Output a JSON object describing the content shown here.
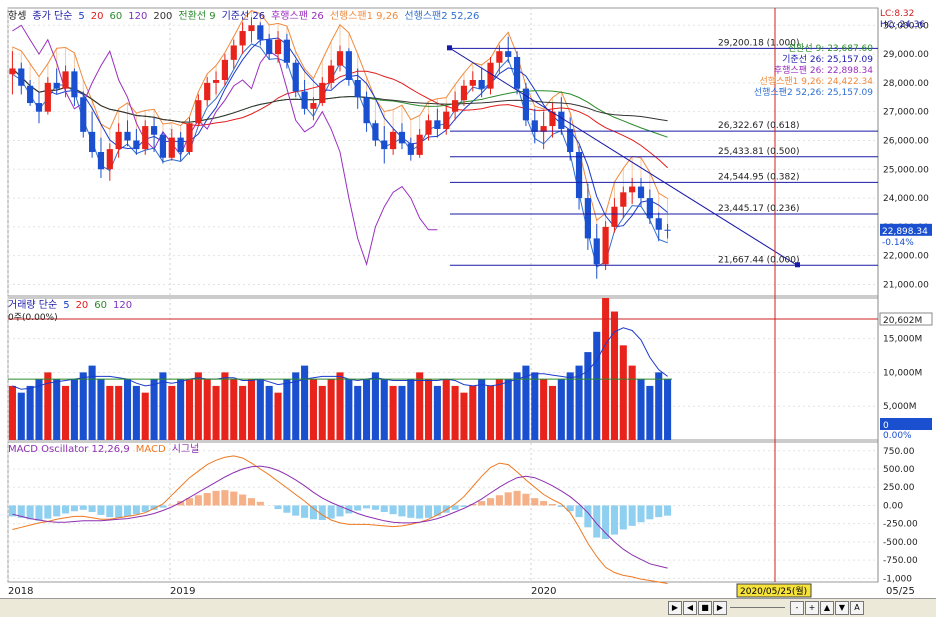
{
  "colors": {
    "up": "#e8231c",
    "down": "#1a4fcf",
    "ma5": "#1b3bcc",
    "ma20": "#e21b1b",
    "ma60": "#2b8a2b",
    "ma120": "#7e2fbf",
    "ma200": "#333333",
    "tenkan": "#2b8a2b",
    "kijun": "#1a1aa8",
    "chikou": "#9a2fc0",
    "spanA": "#f08a3c",
    "spanB": "#2f6fd0",
    "macd": "#f07820",
    "signal": "#8e2fb0",
    "hist_pos": "#f6b088",
    "hist_neg": "#8fd0f0",
    "vline": "#cc2020",
    "fib": "#1a1aa8"
  },
  "price_panel": {
    "legend": [
      {
        "text": "항셍",
        "color": "#222"
      },
      {
        "text": "종가 단순",
        "color": "#1a1aa8"
      },
      {
        "text": "5",
        "color": "#1b3bcc"
      },
      {
        "text": "20",
        "color": "#e21b1b"
      },
      {
        "text": "60",
        "color": "#2b8a2b"
      },
      {
        "text": "120",
        "color": "#7e2fbf"
      },
      {
        "text": "200",
        "color": "#333"
      },
      {
        "text": "전환선 9",
        "color": "#2b8a2b"
      },
      {
        "text": "기준선 26",
        "color": "#1a1aa8"
      },
      {
        "text": "후행스팬 26",
        "color": "#9a2fc0"
      },
      {
        "text": "선행스팬1 9,26",
        "color": "#f08a3c"
      },
      {
        "text": "선행스팬2 52,26",
        "color": "#2f6fd0"
      }
    ],
    "corner_lc": "LC:8.32",
    "corner_hc": "HC:-24.36",
    "ichimoku_readout": [
      {
        "text": "전환선 9: 23,687.60",
        "color": "#2b8a2b"
      },
      {
        "text": "기준선 26: 25,157.09",
        "color": "#1a1aa8"
      },
      {
        "text": "후행스팬 26: 22,898.34",
        "color": "#9a2fc0"
      },
      {
        "text": "선행스팬1 9,26: 24,422.34",
        "color": "#f08a3c"
      },
      {
        "text": "선행스팬2 52,26: 25,157.09",
        "color": "#2f6fd0"
      }
    ],
    "y_axis": [
      "30,000.00",
      "29,000.00",
      "28,000.00",
      "27,000.00",
      "26,000.00",
      "25,000.00",
      "24,000.00",
      "23,000.00",
      "22,000.00",
      "21,000.00"
    ],
    "current_price": "22,898.34",
    "current_change": "-0.14%",
    "fib_levels": [
      {
        "label": "29,200.18 (1.000)",
        "value": 29200.18
      },
      {
        "label": "26,322.67 (0.618)",
        "value": 26322.67
      },
      {
        "label": "25,433.81 (0.500)",
        "value": 25433.81
      },
      {
        "label": "24,544.95 (0.382)",
        "value": 24544.95
      },
      {
        "label": "23,445.17 (0.236)",
        "value": 23445.17
      },
      {
        "label": "21,667.44 (0.000)",
        "value": 21667.44
      }
    ]
  },
  "volume_panel": {
    "legend": [
      {
        "text": "거래량 단순",
        "color": "#1a1aa8"
      },
      {
        "text": "5",
        "color": "#1b3bcc"
      },
      {
        "text": "20",
        "color": "#e21b1b"
      },
      {
        "text": "60",
        "color": "#2b8a2b"
      },
      {
        "text": "120",
        "color": "#7e2fbf"
      }
    ],
    "sub_legend": "0주(0.00%)",
    "y_axis": [
      "15,000M",
      "10,000M",
      "5,000M"
    ],
    "current_volume": "20,602M",
    "current_zero": "0",
    "current_pct": "0.00%"
  },
  "macd_panel": {
    "legend": [
      {
        "text": "MACD Oscillator 12,26,9",
        "color": "#8e2fb0"
      },
      {
        "text": "MACD",
        "color": "#f07820"
      },
      {
        "text": "시그널",
        "color": "#8e2fb0"
      }
    ],
    "y_axis": [
      "750.00",
      "500.00",
      "250.00",
      "0.00",
      "-250.00",
      "-500.00",
      "-750.00",
      "-1,000"
    ]
  },
  "x_axis": {
    "labels": [
      "2018",
      "2019",
      "2020"
    ],
    "right_label": "05/25",
    "cursor_date": "2020/05/25(월)"
  },
  "chart_data": {
    "type": "candlestick",
    "title": "항셍",
    "price_ylim": [
      20600,
      30600
    ],
    "fib_anchor_high": 29200.18,
    "fib_anchor_low": 21667.44,
    "last_close": 22898.34,
    "last_change_pct": -0.14,
    "ichimoku": {
      "tenkan_9": 23687.6,
      "kijun_26": 25157.09,
      "chikou_26": 22898.34,
      "span1_9_26": 24422.34,
      "span2_52_26": 25157.09
    },
    "candles": [
      [
        28300,
        29100,
        27600,
        28500
      ],
      [
        28500,
        28700,
        27600,
        27900
      ],
      [
        27900,
        28100,
        27200,
        27300
      ],
      [
        27300,
        27700,
        26600,
        27000
      ],
      [
        27000,
        28200,
        26900,
        28000
      ],
      [
        28000,
        28500,
        27600,
        27800
      ],
      [
        27800,
        28600,
        27500,
        28400
      ],
      [
        28400,
        28500,
        27200,
        27500
      ],
      [
        27500,
        27700,
        26100,
        26300
      ],
      [
        26300,
        27000,
        25400,
        25600
      ],
      [
        25600,
        26100,
        24700,
        25000
      ],
      [
        25000,
        25900,
        24600,
        25700
      ],
      [
        25700,
        26600,
        25400,
        26300
      ],
      [
        26300,
        26700,
        25800,
        26000
      ],
      [
        26000,
        26400,
        25500,
        25700
      ],
      [
        25700,
        26700,
        25500,
        26500
      ],
      [
        26500,
        26800,
        25600,
        26200
      ],
      [
        26200,
        26300,
        25200,
        25400
      ],
      [
        25400,
        26400,
        25300,
        26100
      ],
      [
        26100,
        26300,
        25300,
        25600
      ],
      [
        25600,
        26800,
        25500,
        26600
      ],
      [
        26600,
        27600,
        26500,
        27400
      ],
      [
        27400,
        28200,
        27200,
        28000
      ],
      [
        28000,
        28400,
        27600,
        28100
      ],
      [
        28100,
        29000,
        27900,
        28800
      ],
      [
        28800,
        29500,
        28500,
        29300
      ],
      [
        29300,
        30100,
        29000,
        29800
      ],
      [
        29800,
        30280,
        29400,
        30000
      ],
      [
        30000,
        30100,
        29300,
        29500
      ],
      [
        29500,
        29700,
        28800,
        29000
      ],
      [
        29000,
        29800,
        28700,
        29500
      ],
      [
        29500,
        29700,
        28500,
        28700
      ],
      [
        28700,
        28800,
        27500,
        27700
      ],
      [
        27700,
        28100,
        26900,
        27100
      ],
      [
        27100,
        27500,
        26700,
        27300
      ],
      [
        27300,
        28200,
        27200,
        28000
      ],
      [
        28000,
        28800,
        27800,
        28600
      ],
      [
        28600,
        29300,
        28400,
        29100
      ],
      [
        29100,
        29200,
        27900,
        28100
      ],
      [
        28100,
        28500,
        27100,
        27500
      ],
      [
        27500,
        27700,
        26300,
        26600
      ],
      [
        26600,
        26700,
        25800,
        26000
      ],
      [
        26000,
        26500,
        25200,
        25700
      ],
      [
        25700,
        26400,
        25500,
        26300
      ],
      [
        26300,
        26600,
        25700,
        25900
      ],
      [
        25900,
        26100,
        25300,
        25500
      ],
      [
        25500,
        26400,
        25400,
        26200
      ],
      [
        26200,
        26900,
        26000,
        26700
      ],
      [
        26700,
        27100,
        26100,
        26400
      ],
      [
        26400,
        27200,
        26200,
        27000
      ],
      [
        27000,
        27700,
        26700,
        27400
      ],
      [
        27400,
        28100,
        27200,
        27900
      ],
      [
        27900,
        28400,
        27700,
        28100
      ],
      [
        28100,
        28500,
        27500,
        27800
      ],
      [
        27800,
        28900,
        27600,
        28700
      ],
      [
        28700,
        29300,
        28300,
        29100
      ],
      [
        29100,
        29600,
        28700,
        28900
      ],
      [
        28900,
        29100,
        27600,
        27800
      ],
      [
        27800,
        28000,
        26500,
        26700
      ],
      [
        26700,
        27100,
        25900,
        26300
      ],
      [
        26300,
        27000,
        25700,
        26500
      ],
      [
        26500,
        27300,
        26100,
        27000
      ],
      [
        27000,
        27500,
        26200,
        26400
      ],
      [
        26400,
        26800,
        25300,
        25600
      ],
      [
        25600,
        25800,
        23600,
        24000
      ],
      [
        24000,
        24500,
        22200,
        22600
      ],
      [
        22600,
        23100,
        21200,
        21700
      ],
      [
        21700,
        23200,
        21500,
        23000
      ],
      [
        23000,
        24000,
        22800,
        23700
      ],
      [
        23700,
        24400,
        23300,
        24200
      ],
      [
        24200,
        24700,
        23800,
        24400
      ],
      [
        24400,
        24700,
        23700,
        24000
      ],
      [
        24000,
        24300,
        23100,
        23300
      ],
      [
        23300,
        23500,
        22500,
        22900
      ],
      [
        22900,
        23100,
        22600,
        22898
      ]
    ],
    "volume": [
      8,
      7,
      8,
      9,
      10,
      9,
      8,
      9,
      10,
      11,
      9,
      8,
      8,
      9,
      8,
      7,
      9,
      10,
      8,
      9,
      9,
      10,
      9,
      8,
      10,
      9,
      8,
      9,
      9,
      8,
      7,
      9,
      10,
      11,
      9,
      8,
      9,
      10,
      9,
      8,
      9,
      10,
      9,
      8,
      8,
      9,
      10,
      9,
      8,
      9,
      8,
      7,
      8,
      9,
      8,
      9,
      9,
      10,
      11,
      10,
      9,
      8,
      9,
      10,
      11,
      13,
      16,
      21,
      19,
      14,
      11,
      9,
      8,
      10,
      9
    ],
    "macd_hist": [
      -150,
      -170,
      -190,
      -210,
      -180,
      -150,
      -110,
      -80,
      -60,
      -90,
      -130,
      -160,
      -170,
      -150,
      -120,
      -90,
      -60,
      -30,
      10,
      60,
      100,
      140,
      170,
      200,
      210,
      190,
      150,
      100,
      50,
      0,
      -50,
      -100,
      -140,
      -170,
      -190,
      -200,
      -180,
      -150,
      -110,
      -70,
      -40,
      -60,
      -90,
      -120,
      -150,
      -170,
      -180,
      -170,
      -140,
      -100,
      -60,
      -20,
      20,
      60,
      100,
      140,
      180,
      200,
      160,
      100,
      60,
      20,
      -20,
      -80,
      -160,
      -300,
      -440,
      -460,
      -400,
      -330,
      -280,
      -230,
      -190,
      -160,
      -140
    ],
    "macd_line": [
      -330,
      -300,
      -270,
      -240,
      -220,
      -190,
      -170,
      -150,
      -150,
      -170,
      -190,
      -190,
      -170,
      -150,
      -130,
      -100,
      -40,
      20,
      140,
      260,
      380,
      470,
      560,
      620,
      660,
      680,
      650,
      580,
      500,
      420,
      330,
      240,
      150,
      60,
      -40,
      -130,
      -200,
      -240,
      -260,
      -260,
      -260,
      -270,
      -280,
      -290,
      -280,
      -260,
      -230,
      -190,
      -130,
      -60,
      20,
      120,
      260,
      400,
      520,
      580,
      560,
      460,
      350,
      250,
      150,
      80,
      20,
      -100,
      -300,
      -520,
      -700,
      -850,
      -920,
      -960,
      -980,
      -1010,
      -1030,
      -1050,
      -1070
    ],
    "signal_line": [
      -120,
      -150,
      -180,
      -200,
      -220,
      -230,
      -230,
      -220,
      -210,
      -210,
      -210,
      -200,
      -190,
      -180,
      -160,
      -140,
      -110,
      -70,
      -20,
      40,
      110,
      180,
      250,
      320,
      390,
      450,
      500,
      530,
      540,
      520,
      480,
      420,
      350,
      270,
      180,
      100,
      40,
      -10,
      -60,
      -110,
      -150,
      -180,
      -210,
      -230,
      -240,
      -240,
      -230,
      -210,
      -180,
      -140,
      -90,
      -40,
      20,
      90,
      170,
      250,
      320,
      380,
      400,
      380,
      330,
      270,
      200,
      120,
      20,
      -100,
      -250,
      -380,
      -500,
      -600,
      -680,
      -740,
      -800,
      -830,
      -860
    ],
    "ylim_volume_m": [
      0,
      21000
    ],
    "ylim_macd": [
      -1050,
      870
    ]
  }
}
